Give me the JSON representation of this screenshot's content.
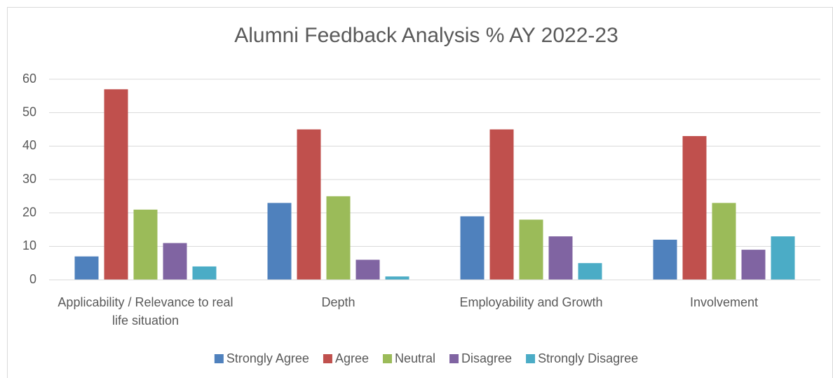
{
  "chart_data": {
    "type": "bar",
    "title": "Alumni Feedback Analysis % AY 2022-23",
    "categories": [
      "Applicability / Relevance to real life situation",
      "Depth",
      "Employability and Growth",
      "Involvement"
    ],
    "series": [
      {
        "name": "Strongly Agree",
        "color": "#4f81bd",
        "values": [
          7,
          23,
          19,
          12
        ]
      },
      {
        "name": "Agree",
        "color": "#c0504d",
        "values": [
          57,
          45,
          45,
          43
        ]
      },
      {
        "name": "Neutral",
        "color": "#9bbb59",
        "values": [
          21,
          25,
          18,
          23
        ]
      },
      {
        "name": "Disagree",
        "color": "#8064a2",
        "values": [
          11,
          6,
          13,
          9
        ]
      },
      {
        "name": "Strongly Disagree",
        "color": "#4bacc6",
        "values": [
          4,
          1,
          5,
          13
        ]
      }
    ],
    "ylim": [
      0,
      60
    ],
    "yticks": [
      0,
      10,
      20,
      30,
      40,
      50,
      60
    ],
    "grid": true,
    "legend": "bottom"
  }
}
